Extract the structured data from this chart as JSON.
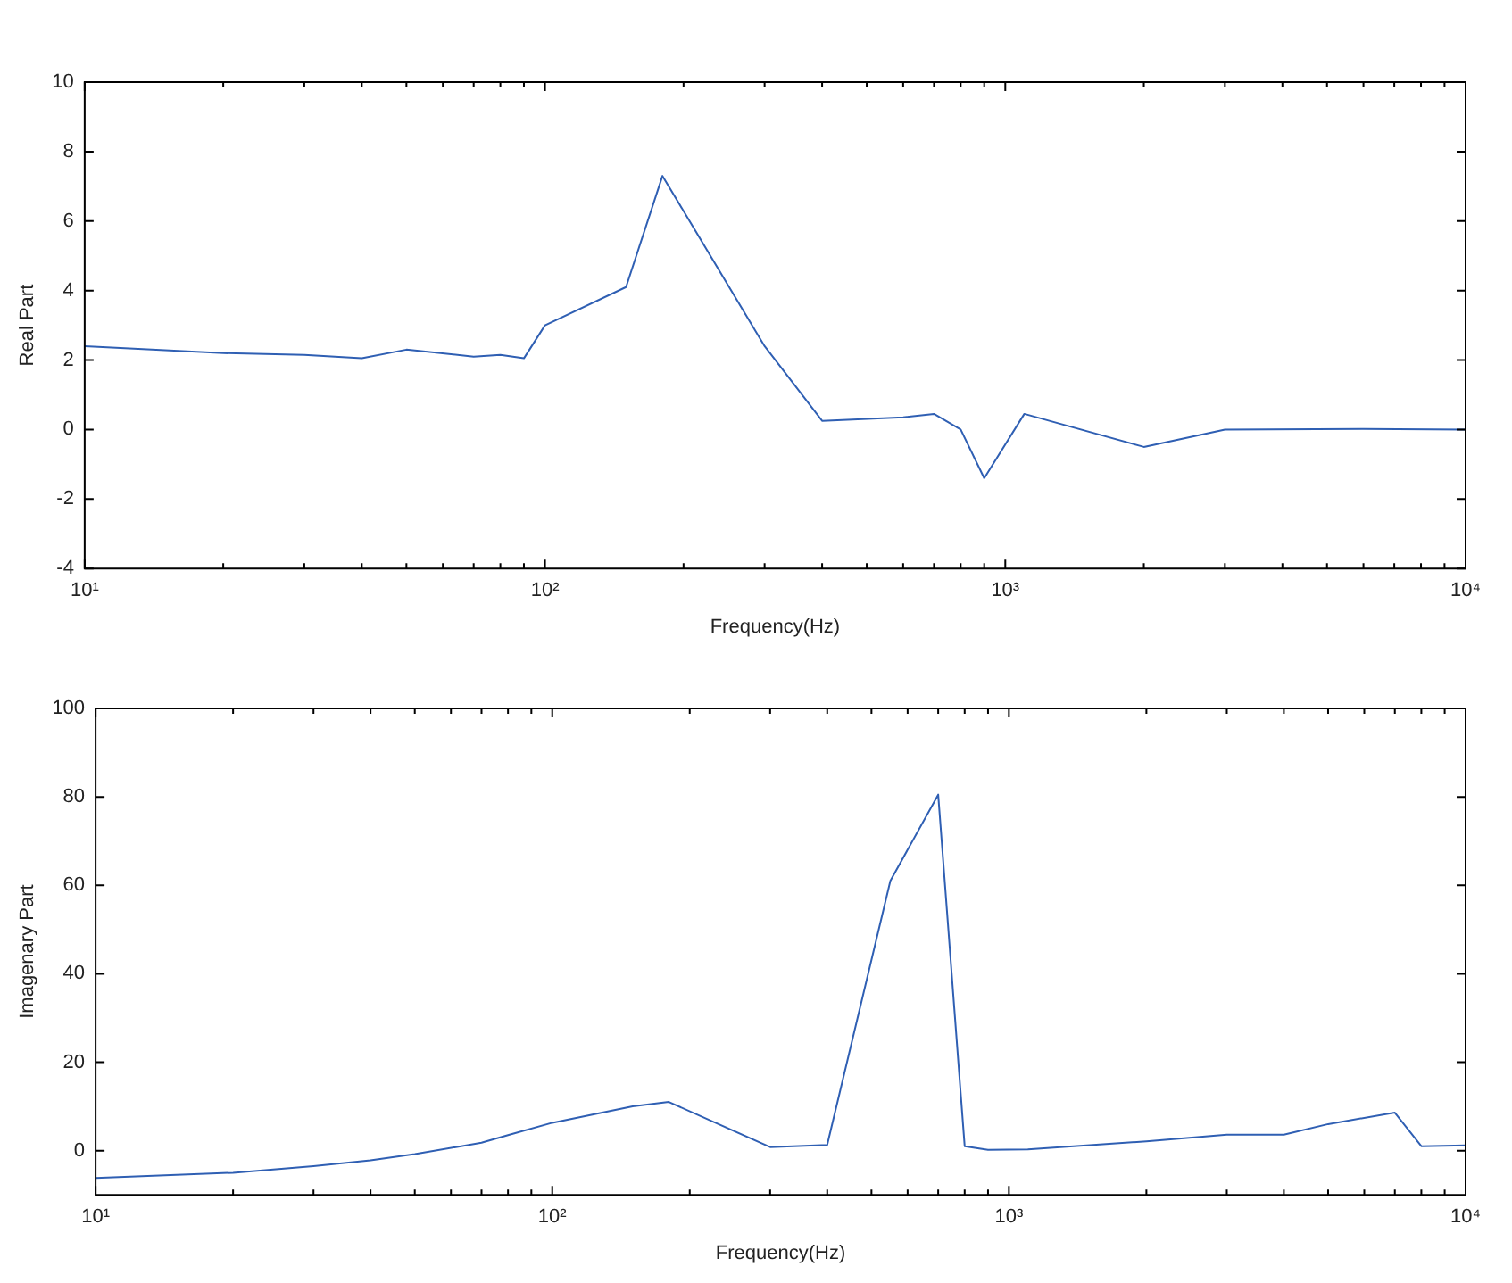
{
  "chart_data": [
    {
      "type": "line",
      "xlabel": "Frequency(Hz)",
      "ylabel": "Real Part",
      "log": "x",
      "xlim": [
        10,
        10000
      ],
      "xticks": [
        {
          "value": 10,
          "label": "10¹"
        },
        {
          "value": 100,
          "label": "10²"
        },
        {
          "value": 1000,
          "label": "10³"
        },
        {
          "value": 10000,
          "label": "10⁴"
        }
      ],
      "ylim": [
        -4,
        10
      ],
      "yticks": [
        -4,
        -2,
        0,
        2,
        4,
        6,
        8,
        10
      ],
      "series": [
        {
          "color": "#2f5fb3",
          "x": [
            10,
            20,
            30,
            40,
            50,
            70,
            80,
            90,
            100,
            150,
            180,
            300,
            400,
            600,
            700,
            800,
            900,
            1100,
            2000,
            3000,
            6000,
            10000
          ],
          "values": [
            2.4,
            2.2,
            2.15,
            2.05,
            2.3,
            2.1,
            2.15,
            2.05,
            3.0,
            4.1,
            7.3,
            2.4,
            0.25,
            0.35,
            0.45,
            0,
            -1.4,
            0.45,
            -0.5,
            0,
            0.02,
            0
          ]
        }
      ]
    },
    {
      "type": "line",
      "xlabel": "Frequency(Hz)",
      "ylabel": "Imagenary Part",
      "log": "x",
      "xlim": [
        10,
        10000
      ],
      "xticks": [
        {
          "value": 10,
          "label": "10¹"
        },
        {
          "value": 100,
          "label": "10²"
        },
        {
          "value": 1000,
          "label": "10³"
        },
        {
          "value": 10000,
          "label": "10⁴"
        }
      ],
      "ylim": [
        -10,
        100
      ],
      "yticks": [
        0,
        20,
        40,
        60,
        80,
        100
      ],
      "series": [
        {
          "color": "#2f5fb3",
          "x": [
            10,
            20,
            30,
            40,
            50,
            70,
            80,
            100,
            150,
            180,
            300,
            400,
            550,
            700,
            800,
            900,
            1100,
            2000,
            3000,
            4000,
            5000,
            7000,
            8000,
            10000
          ],
          "values": [
            -6.2,
            -5,
            -3.5,
            -2.2,
            -0.8,
            1.8,
            3.5,
            6.3,
            10,
            11,
            0.8,
            1.3,
            61,
            80.5,
            1.0,
            0.2,
            0.3,
            2.1,
            3.6,
            3.6,
            6,
            8.6,
            1,
            1.2
          ]
        }
      ]
    }
  ]
}
